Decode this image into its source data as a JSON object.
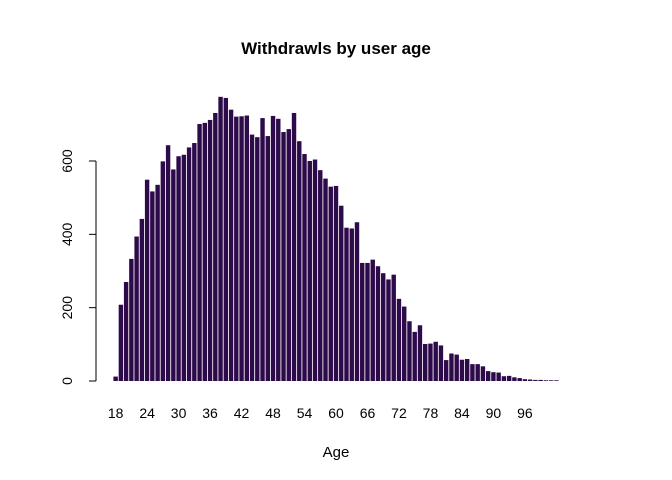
{
  "chart_data": {
    "type": "bar",
    "title": "Withdrawls by user age",
    "xlabel": "Age",
    "ylabel": "",
    "bar_color": "#2d0a4a",
    "ylim": [
      0,
      780
    ],
    "yticks": [
      0,
      200,
      400,
      600
    ],
    "ytick_labels": [
      "0",
      "200",
      "400",
      "600"
    ],
    "xtick_labels": [
      "18",
      "24",
      "30",
      "36",
      "42",
      "48",
      "54",
      "60",
      "66",
      "72",
      "78",
      "84",
      "90",
      "96"
    ],
    "xtick_ages": [
      18,
      24,
      30,
      36,
      42,
      48,
      54,
      60,
      66,
      72,
      78,
      84,
      90,
      96
    ],
    "categories": [
      18,
      19,
      20,
      21,
      22,
      23,
      24,
      25,
      26,
      27,
      28,
      29,
      30,
      31,
      32,
      33,
      34,
      35,
      36,
      37,
      38,
      39,
      40,
      41,
      42,
      43,
      44,
      45,
      46,
      47,
      48,
      49,
      50,
      51,
      52,
      53,
      54,
      55,
      56,
      57,
      58,
      59,
      60,
      61,
      62,
      63,
      64,
      65,
      66,
      67,
      68,
      69,
      70,
      71,
      72,
      73,
      74,
      75,
      76,
      77,
      78,
      79,
      80,
      81,
      82,
      83,
      84,
      85,
      86,
      87,
      88,
      89,
      90,
      91,
      92,
      93,
      94,
      95,
      96,
      97,
      98,
      99,
      100,
      101,
      102
    ],
    "values": [
      12,
      208,
      270,
      333,
      394,
      442,
      549,
      517,
      535,
      599,
      643,
      577,
      613,
      617,
      637,
      649,
      701,
      704,
      712,
      731,
      775,
      772,
      740,
      721,
      722,
      724,
      672,
      665,
      717,
      668,
      723,
      715,
      679,
      687,
      731,
      654,
      619,
      600,
      604,
      575,
      552,
      530,
      532,
      478,
      418,
      416,
      433,
      322,
      322,
      331,
      313,
      294,
      277,
      290,
      224,
      203,
      163,
      134,
      152,
      101,
      102,
      107,
      97,
      57,
      75,
      72,
      58,
      60,
      46,
      46,
      40,
      27,
      24,
      23,
      13,
      14,
      10,
      8,
      5,
      4,
      3,
      3,
      2,
      2,
      2
    ]
  }
}
